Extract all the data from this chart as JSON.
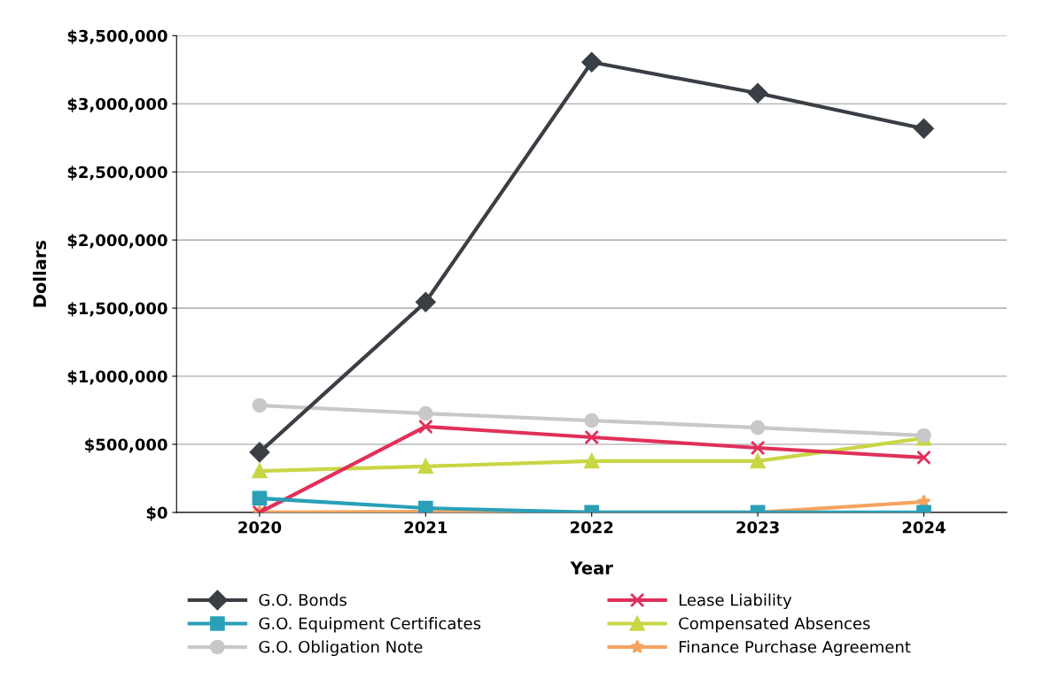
{
  "chart_data": {
    "type": "line",
    "xlabel": "Year",
    "ylabel": "Dollars",
    "categories": [
      "2020",
      "2021",
      "2022",
      "2023",
      "2024"
    ],
    "ylim": [
      0,
      3500000
    ],
    "yticks": [
      {
        "value": 0,
        "label": "$0"
      },
      {
        "value": 500000,
        "label": "$500,000"
      },
      {
        "value": 1000000,
        "label": "$1,000,000"
      },
      {
        "value": 1500000,
        "label": "$1,500,000"
      },
      {
        "value": 2000000,
        "label": "$2,000,000"
      },
      {
        "value": 2500000,
        "label": "$2,500,000"
      },
      {
        "value": 3000000,
        "label": "$3,000,000"
      },
      {
        "value": 3500000,
        "label": "$3,500,000"
      }
    ],
    "grid": "y",
    "legend": "bottom",
    "line_style": "solid",
    "series": [
      {
        "name": "G.O. Bonds",
        "color": "#3a3f45",
        "marker": "diamond",
        "values": [
          442000,
          1545000,
          3305000,
          3078000,
          2818000
        ]
      },
      {
        "name": "G.O. Equipment Certificates",
        "color": "#2aa0b8",
        "marker": "square",
        "values": [
          104000,
          32000,
          0,
          0,
          0
        ]
      },
      {
        "name": "G.O. Obligation Note",
        "color": "#c8c8c8",
        "marker": "circle",
        "values": [
          786000,
          727000,
          675000,
          623000,
          565000
        ]
      },
      {
        "name": "Lease Liability",
        "color": "#e0305a",
        "marker": "cross",
        "values": [
          0,
          630000,
          552000,
          474000,
          403000
        ]
      },
      {
        "name": "Compensated Absences",
        "color": "#c8d645",
        "marker": "triangle",
        "values": [
          305000,
          338000,
          377000,
          377000,
          545000
        ]
      },
      {
        "name": "Finance Purchase Agreement",
        "color": "#f4a460",
        "marker": "star",
        "values": [
          0,
          5000,
          0,
          0,
          78000
        ]
      }
    ]
  }
}
